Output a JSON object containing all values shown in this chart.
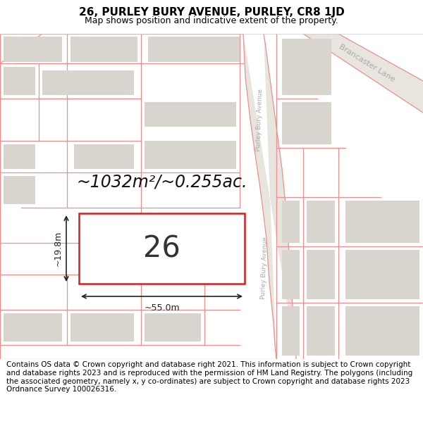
{
  "title_line1": "26, PURLEY BURY AVENUE, PURLEY, CR8 1JD",
  "title_line2": "Map shows position and indicative extent of the property.",
  "footer_text": "Contains OS data © Crown copyright and database right 2021. This information is subject to Crown copyright and database rights 2023 and is reproduced with the permission of HM Land Registry. The polygons (including the associated geometry, namely x, y co-ordinates) are subject to Crown copyright and database rights 2023 Ordnance Survey 100026316.",
  "area_label": "~1032m²/~0.255ac.",
  "house_number": "26",
  "dim_width": "~55.0m",
  "dim_height": "~19.8m",
  "map_bg": "#ffffff",
  "plot_edge": "#cc2222",
  "boundary_color": "#e89090",
  "building_fill": "#d8d4ce",
  "road_fill": "#e8e4de",
  "title_fontsize": 11,
  "subtitle_fontsize": 9,
  "footer_fontsize": 7.5,
  "label_fontsize": 17,
  "number_fontsize": 30,
  "dim_fontsize": 9,
  "road_label_color": "#aaaaaa",
  "road_label_fontsize": 7
}
